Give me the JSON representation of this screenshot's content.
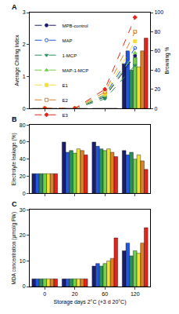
{
  "chart_data": [
    {
      "type": "bar",
      "title": "A",
      "categories": [
        "0",
        "20",
        "60",
        "120"
      ],
      "ylabel": "Average Chilling Index",
      "y2label": "Browning %",
      "ylim": [
        0,
        3
      ],
      "yticks": [
        0,
        1,
        2,
        3
      ],
      "y2lim": [
        0,
        100
      ],
      "y2ticks": [
        0,
        20,
        40,
        60,
        80,
        100
      ],
      "legend": "top left",
      "tick_labels": "y",
      "grid": false,
      "series": [
        {
          "name": "MPB-control",
          "type": "bar",
          "color": "#1b1f6b",
          "values": [
            0,
            0,
            0,
            1.4
          ]
        },
        {
          "name": "MAP",
          "type": "bar",
          "color": "#2255e0",
          "values": [
            0,
            0,
            0,
            1.8
          ]
        },
        {
          "name": "1-MCP",
          "type": "bar",
          "color": "#2a8f5a",
          "values": [
            0,
            0,
            0,
            1.2
          ]
        },
        {
          "name": "MAP-1-MCP",
          "type": "bar",
          "color": "#6fd14a",
          "values": [
            0,
            0,
            0,
            1.6
          ]
        },
        {
          "name": "E1",
          "type": "bar",
          "color": "#f2e03a",
          "values": [
            0,
            0,
            0,
            1.3
          ]
        },
        {
          "name": "E2",
          "type": "bar",
          "color": "#d9822b",
          "values": [
            0,
            0,
            0,
            1.8
          ]
        },
        {
          "name": "E3",
          "type": "bar",
          "color": "#e3241b",
          "values": [
            0,
            0,
            0,
            2.2
          ]
        },
        {
          "name": "MPB-control",
          "type": "line",
          "axis": "y2",
          "color": "#1b1f6b",
          "marker": "circle",
          "line_style": "dashed",
          "values": [
            0,
            0,
            12,
            55
          ]
        },
        {
          "name": "MAP",
          "type": "line",
          "axis": "y2",
          "color": "#2255e0",
          "marker": "circle-open",
          "line_style": "dashed",
          "values": [
            0,
            0,
            14,
            63
          ]
        },
        {
          "name": "1-MCP",
          "type": "line",
          "axis": "y2",
          "color": "#2a8f5a",
          "marker": "triangle-down",
          "line_style": "dashed",
          "values": [
            0,
            0,
            10,
            45
          ]
        },
        {
          "name": "MAP-1-MCP",
          "type": "line",
          "axis": "y2",
          "color": "#6fd14a",
          "marker": "triangle-up",
          "line_style": "dashed",
          "values": [
            0,
            0,
            13,
            58
          ]
        },
        {
          "name": "E1",
          "type": "line",
          "axis": "y2",
          "color": "#f2e03a",
          "marker": "square",
          "line_style": "dashed",
          "values": [
            0,
            0,
            15,
            70
          ]
        },
        {
          "name": "E2",
          "type": "line",
          "axis": "y2",
          "color": "#d9822b",
          "marker": "square-open",
          "line_style": "dashed",
          "values": [
            0,
            0,
            17,
            80
          ]
        },
        {
          "name": "E3",
          "type": "line",
          "axis": "y2",
          "color": "#e3241b",
          "marker": "diamond",
          "line_style": "dashed",
          "values": [
            0,
            0,
            20,
            95
          ]
        }
      ]
    },
    {
      "type": "bar",
      "title": "B",
      "categories": [
        "0",
        "20",
        "60",
        "120"
      ],
      "ylabel": "Electrolyte leakage (%)",
      "ylim": [
        0,
        80
      ],
      "yticks": [
        0,
        20,
        40,
        60,
        80
      ],
      "tick_labels": "y",
      "grid": false,
      "series": [
        {
          "name": "MPB-control",
          "color": "#1b1f6b",
          "values": [
            23,
            60,
            60,
            50
          ]
        },
        {
          "name": "MAP",
          "color": "#2255e0",
          "values": [
            23,
            48,
            55,
            45
          ]
        },
        {
          "name": "1-MCP",
          "color": "#2a8f5a",
          "values": [
            23,
            50,
            52,
            48
          ]
        },
        {
          "name": "MAP-1-MCP",
          "color": "#6fd14a",
          "values": [
            23,
            47,
            50,
            40
          ]
        },
        {
          "name": "E1",
          "color": "#f2e03a",
          "values": [
            23,
            52,
            52,
            45
          ]
        },
        {
          "name": "E2",
          "color": "#d9822b",
          "values": [
            23,
            50,
            48,
            38
          ]
        },
        {
          "name": "E3",
          "color": "#e3241b",
          "values": [
            23,
            45,
            43,
            28
          ]
        }
      ]
    },
    {
      "type": "bar",
      "title": "C",
      "categories": [
        "0",
        "20",
        "60",
        "120"
      ],
      "xlabel": "Storage days 2°C (+3 d 20°C)",
      "ylabel": "MDA concentration (µmol/g FW)",
      "ylim": [
        0,
        30
      ],
      "yticks": [
        0,
        10,
        20,
        30
      ],
      "grid": false,
      "series": [
        {
          "name": "MPB-control",
          "color": "#1b1f6b",
          "values": [
            3,
            3,
            8,
            14
          ]
        },
        {
          "name": "MAP",
          "color": "#2255e0",
          "values": [
            3,
            3,
            9,
            17
          ]
        },
        {
          "name": "1-MCP",
          "color": "#2a8f5a",
          "values": [
            3,
            3,
            8,
            12
          ]
        },
        {
          "name": "MAP-1-MCP",
          "color": "#6fd14a",
          "values": [
            3,
            3,
            9,
            14
          ]
        },
        {
          "name": "E1",
          "color": "#f2e03a",
          "values": [
            3,
            3,
            10,
            13
          ]
        },
        {
          "name": "E2",
          "color": "#d9822b",
          "values": [
            3,
            3,
            11,
            17
          ]
        },
        {
          "name": "E3",
          "color": "#e3241b",
          "values": [
            3,
            3,
            19,
            23
          ]
        }
      ]
    }
  ]
}
